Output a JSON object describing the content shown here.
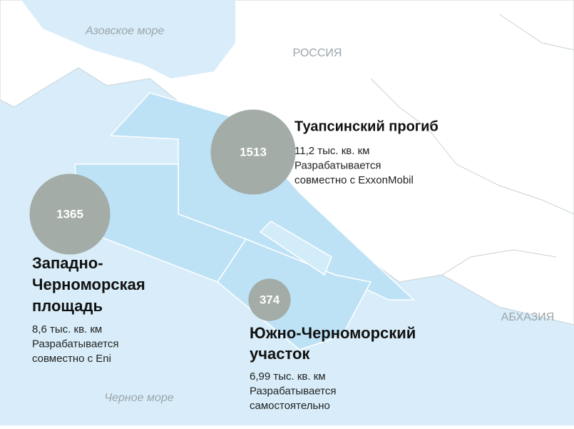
{
  "map_labels": {
    "sea_top": "Азовское море",
    "country": "РОССИЯ",
    "country2": "АБХАЗИЯ",
    "sea_bottom": "Черное море"
  },
  "regions": [
    {
      "value": 1513,
      "title_lines": [
        "Туапсинский прогиб"
      ],
      "details": [
        "11,2 тыс. кв. км",
        "Разрабатывается",
        "совместно с ExxonMobil"
      ]
    },
    {
      "value": 1365,
      "title_lines": [
        "Западно-",
        "Черноморская",
        "площадь"
      ],
      "details": [
        "8,6 тыс. кв. км",
        "Разрабатывается",
        "совместно с Eni"
      ]
    },
    {
      "value": 374,
      "title_lines": [
        "Южно-Черноморский",
        "участок"
      ],
      "details": [
        "6,99 тыс. кв. км",
        "Разрабатывается",
        "самостоятельно"
      ]
    }
  ]
}
